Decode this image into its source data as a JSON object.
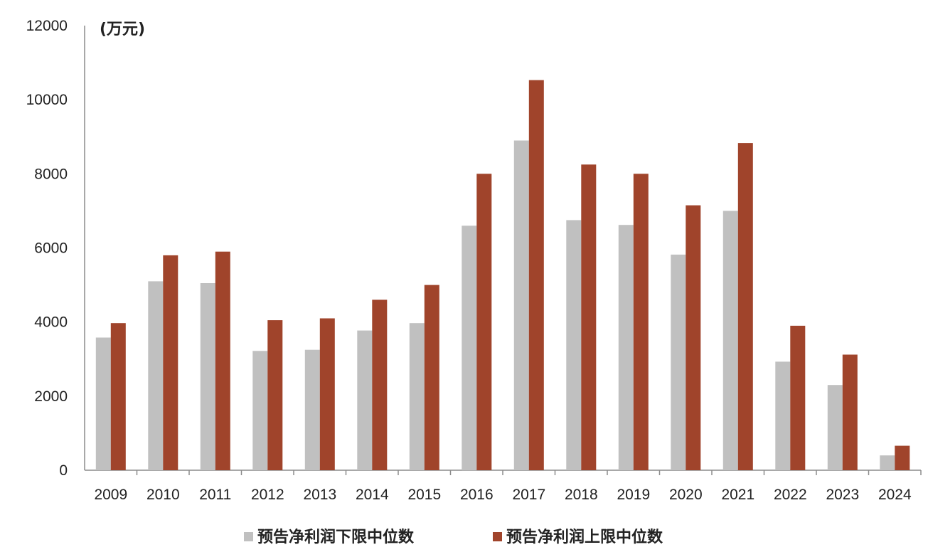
{
  "chart_data": {
    "type": "bar",
    "unit_label": "(万元)",
    "categories": [
      "2009",
      "2010",
      "2011",
      "2012",
      "2013",
      "2014",
      "2015",
      "2016",
      "2017",
      "2018",
      "2019",
      "2020",
      "2021",
      "2022",
      "2023",
      "2024"
    ],
    "series": [
      {
        "name": "预告净利润下限中位数",
        "color": "#c0c0c0",
        "values": [
          3580,
          5100,
          5050,
          3220,
          3250,
          3770,
          3970,
          6600,
          8900,
          6750,
          6620,
          5820,
          7000,
          2930,
          2300,
          400
        ]
      },
      {
        "name": "预告净利润上限中位数",
        "color": "#a0442b",
        "values": [
          3970,
          5800,
          5900,
          4050,
          4100,
          4600,
          5000,
          8000,
          10530,
          8250,
          8000,
          7150,
          8830,
          3900,
          3120,
          660
        ]
      }
    ],
    "y_ticks": [
      0,
      2000,
      4000,
      6000,
      8000,
      10000,
      12000
    ],
    "ylim": [
      0,
      12000
    ],
    "grid": false,
    "legend_position": "bottom"
  }
}
